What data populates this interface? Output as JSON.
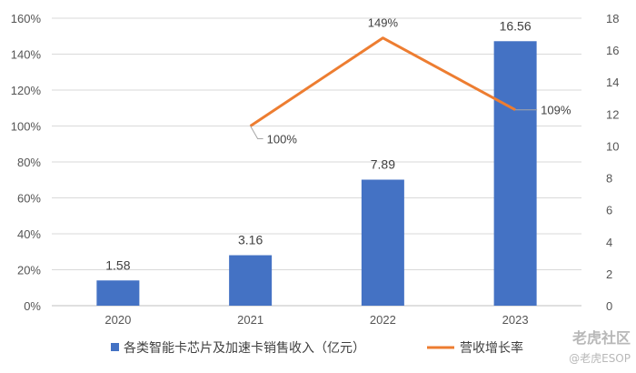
{
  "chart_data": {
    "type": "bar+line",
    "categories": [
      "2020",
      "2021",
      "2022",
      "2023"
    ],
    "series": [
      {
        "name": "各类智能卡芯片及加速卡销售收入（亿元）",
        "type": "bar",
        "axis": "right",
        "values": [
          1.58,
          3.16,
          7.89,
          16.56
        ],
        "labels": [
          "1.58",
          "3.16",
          "7.89",
          "16.56"
        ],
        "color": "#4472c4"
      },
      {
        "name": "营收增长率",
        "type": "line",
        "axis": "left",
        "values": [
          null,
          100,
          149,
          109
        ],
        "labels": [
          "",
          "100%",
          "149%",
          "109%"
        ],
        "color": "#ed7d31"
      }
    ],
    "y_left": {
      "min": 0,
      "max": 160,
      "step": 20,
      "format": "percent"
    },
    "y_right": {
      "min": 0,
      "max": 18,
      "step": 2
    },
    "grid": true,
    "legend_position": "bottom"
  },
  "watermark": {
    "line1": "老虎社区",
    "line2": "@老虎ESOP"
  }
}
